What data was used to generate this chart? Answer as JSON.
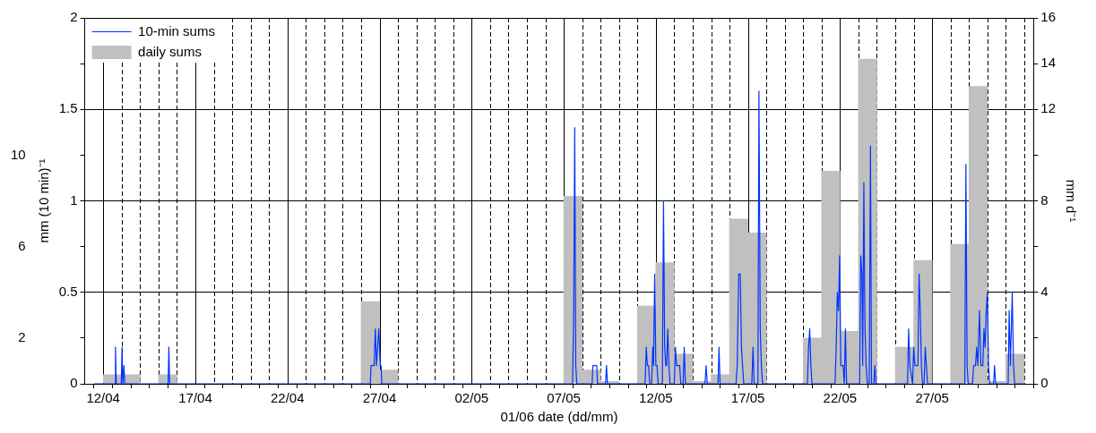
{
  "chart_data": {
    "type": "bar",
    "xlabel": "01/06 date (dd/mm)",
    "ylabel": "mm (10 min)⁻¹",
    "y2label": "mm d⁻¹",
    "xlim": [
      "--04-11T12:00",
      "--06-01T00:00"
    ],
    "xticks": [
      {
        "value": "--04-12",
        "label": "12/04"
      },
      {
        "value": "--04-13",
        "label": null
      },
      {
        "value": "--04-14",
        "label": null
      },
      {
        "value": "--04-15",
        "label": null
      },
      {
        "value": "--04-16",
        "label": null
      },
      {
        "value": "--04-17",
        "label": "17/04"
      },
      {
        "value": "--04-18",
        "label": null
      },
      {
        "value": "--04-19",
        "label": null
      },
      {
        "value": "--04-20",
        "label": null
      },
      {
        "value": "--04-21",
        "label": null
      },
      {
        "value": "--04-22",
        "label": "22/04"
      },
      {
        "value": "--04-23",
        "label": null
      },
      {
        "value": "--04-24",
        "label": null
      },
      {
        "value": "--04-25",
        "label": null
      },
      {
        "value": "--04-26",
        "label": null
      },
      {
        "value": "--04-27",
        "label": "27/04"
      },
      {
        "value": "--04-28",
        "label": null
      },
      {
        "value": "--04-29",
        "label": null
      },
      {
        "value": "--04-30",
        "label": null
      },
      {
        "value": "--05-01",
        "label": null
      },
      {
        "value": "--05-02",
        "label": "02/05"
      },
      {
        "value": "--05-03",
        "label": null
      },
      {
        "value": "--05-04",
        "label": null
      },
      {
        "value": "--05-05",
        "label": null
      },
      {
        "value": "--05-06",
        "label": null
      },
      {
        "value": "--05-07",
        "label": "07/05"
      },
      {
        "value": "--05-08",
        "label": null
      },
      {
        "value": "--05-09",
        "label": null
      },
      {
        "value": "--05-10",
        "label": null
      },
      {
        "value": "--05-11",
        "label": null
      },
      {
        "value": "--05-12",
        "label": "12/05"
      },
      {
        "value": "--05-13",
        "label": null
      },
      {
        "value": "--05-14",
        "label": null
      },
      {
        "value": "--05-15",
        "label": null
      },
      {
        "value": "--05-16",
        "label": null
      },
      {
        "value": "--05-17",
        "label": "17/05"
      },
      {
        "value": "--05-18",
        "label": null
      },
      {
        "value": "--05-19",
        "label": null
      },
      {
        "value": "--05-20",
        "label": null
      },
      {
        "value": "--05-21",
        "label": null
      },
      {
        "value": "--05-22",
        "label": "22/05"
      },
      {
        "value": "--05-23",
        "label": null
      },
      {
        "value": "--05-24",
        "label": null
      },
      {
        "value": "--05-25",
        "label": null
      },
      {
        "value": "--05-26",
        "label": null
      },
      {
        "value": "--05-27",
        "label": "27/05"
      },
      {
        "value": "--05-28",
        "label": null
      },
      {
        "value": "--05-29",
        "label": null
      },
      {
        "value": "--05-30",
        "label": null
      },
      {
        "value": "--05-31",
        "label": null
      },
      {
        "value": "--06-01",
        "label": null
      }
    ],
    "ylim": [
      0,
      2
    ],
    "yticks": [
      0,
      {
        "value": 0.25,
        "label": null
      },
      0.5,
      {
        "value": 0.75,
        "label": null
      },
      1,
      {
        "value": 1.25,
        "label": null
      },
      1.5,
      {
        "value": 1.75,
        "label": null
      },
      2
    ],
    "y2lim": [
      0,
      16
    ],
    "y2ticks": [
      0,
      {
        "value": 2,
        "label": null
      },
      4,
      {
        "value": 6,
        "label": null
      },
      8,
      {
        "value": 10,
        "label": null
      },
      12,
      14,
      16
    ],
    "y3lim": [
      0,
      16
    ],
    "y3ticks": [
      2,
      6,
      10
    ],
    "grid": true,
    "legend": "top left",
    "series": [
      {
        "name": "10-min sums",
        "type": "line",
        "axis": "y",
        "color": "#0033ff",
        "x": [
          "--04-11T12:00",
          "--04-12T15:00",
          "--04-12T16:00",
          "--04-12T17:00",
          "--04-12T23:30",
          "--04-13T00:30",
          "--04-13T01:30",
          "--04-13T03:00",
          "--04-13T04:00",
          "--04-15T12:30",
          "--04-15T13:30",
          "--04-15T14:30",
          "--04-26T12:00",
          "--04-26T13:00",
          "--04-26T17:00",
          "--04-26T18:30",
          "--04-26T20:00",
          "--04-26T21:30",
          "--04-26T23:00",
          "--04-27T01:00",
          "--04-27T02:00",
          "--04-27T03:00",
          "--05-07T11:30",
          "--05-07T13:00",
          "--05-07T14:20",
          "--05-07T15:40",
          "--05-07T17:00",
          "--05-08T13:00",
          "--05-08T14:00",
          "--05-08T19:00",
          "--05-08T20:00",
          "--05-09T06:30",
          "--05-09T07:40",
          "--05-09T09:00",
          "--05-11T10:00",
          "--05-11T11:30",
          "--05-11T13:00",
          "--05-11T14:30",
          "--05-11T16:00",
          "--05-11T18:30",
          "--05-11T20:00",
          "--05-11T21:00",
          "--05-11T22:30",
          "--05-12T00:00",
          "--05-12T01:30",
          "--05-12T03:00",
          "--05-12T08:30",
          "--05-12T10:00",
          "--05-12T11:30",
          "--05-12T13:00",
          "--05-12T14:00",
          "--05-12T15:30",
          "--05-12T17:00",
          "--05-12T18:30",
          "--05-13T00:00",
          "--05-13T01:30",
          "--05-13T03:00",
          "--05-13T07:00",
          "--05-13T08:30",
          "--05-13T11:30",
          "--05-13T13:00",
          "--05-13T14:30",
          "--05-14T16:00",
          "--05-14T17:30",
          "--05-14T19:00",
          "--05-15T09:00",
          "--05-15T10:20",
          "--05-15T11:40",
          "--05-16T08:30",
          "--05-16T10:00",
          "--05-16T12:00",
          "--05-16T14:00",
          "--05-16T15:30",
          "--05-16T17:00",
          "--05-16T18:30",
          "--05-17T05:00",
          "--05-17T06:40",
          "--05-17T08:00",
          "--05-17T13:00",
          "--05-17T14:20",
          "--05-17T16:00",
          "--05-17T17:30",
          "--05-17T19:00",
          "--05-20T05:30",
          "--05-20T07:00",
          "--05-20T08:30",
          "--05-20T10:00",
          "--05-20T11:30",
          "--05-21T17:30",
          "--05-21T19:00",
          "--05-21T20:30",
          "--05-21T22:00",
          "--05-21T23:30",
          "--05-22T01:00",
          "--05-22T04:00",
          "--05-22T05:30",
          "--05-22T07:00",
          "--05-22T08:30",
          "--05-23T01:30",
          "--05-23T03:00",
          "--05-23T04:30",
          "--05-23T05:30",
          "--05-23T07:00",
          "--05-23T08:30",
          "--05-23T10:00",
          "--05-23T11:30",
          "--05-23T14:00",
          "--05-23T15:40",
          "--05-23T17:00",
          "--05-23T20:00",
          "--05-23T21:20",
          "--05-23T22:40",
          "--05-25T16:00",
          "--05-25T17:20",
          "--05-25T19:00",
          "--05-25T22:30",
          "--05-26T00:00",
          "--05-26T01:30",
          "--05-26T05:30",
          "--05-26T07:00",
          "--05-26T08:30",
          "--05-26T10:00",
          "--05-26T11:30",
          "--05-26T13:30",
          "--05-26T15:00",
          "--05-26T16:30",
          "--05-26T18:00",
          "--05-28T18:30",
          "--05-28T20:00",
          "--05-28T21:30",
          "--05-28T23:00",
          "--05-29T04:30",
          "--05-29T06:00",
          "--05-29T08:30",
          "--05-29T10:00",
          "--05-29T11:30",
          "--05-29T13:40",
          "--05-29T15:30",
          "--05-29T18:00",
          "--05-29T19:30",
          "--05-29T21:00",
          "--05-29T22:30",
          "--05-30T00:00",
          "--05-30T01:30",
          "--05-30T03:00",
          "--05-30T08:00",
          "--05-30T09:20",
          "--05-30T10:40",
          "--05-31T03:00",
          "--05-31T04:20",
          "--05-31T06:00",
          "--05-31T08:20",
          "--05-31T10:00",
          "--05-31T11:30",
          "--06-01T00:00"
        ],
        "values": [
          0,
          0,
          0.2,
          0,
          0,
          0.2,
          0,
          0.1,
          0,
          0,
          0.2,
          0,
          0,
          0.1,
          0.1,
          0.3,
          0.1,
          0.2,
          0.3,
          0.1,
          0.1,
          0,
          0,
          0.4,
          1.4,
          0.1,
          0,
          0,
          0.1,
          0.1,
          0,
          0,
          0.1,
          0,
          0,
          0.2,
          0.1,
          0.1,
          0,
          0,
          0.2,
          0.1,
          0.6,
          0.1,
          0.1,
          0,
          0,
          1.0,
          0.2,
          0.1,
          0.1,
          0.3,
          0.1,
          0,
          0,
          0.2,
          0.1,
          0.1,
          0,
          0,
          0.2,
          0,
          0,
          0.1,
          0,
          0,
          0.2,
          0,
          0,
          0.1,
          0.6,
          0.6,
          0.2,
          0.1,
          0,
          0,
          0.2,
          0,
          0,
          1.6,
          0.3,
          0.1,
          0,
          0,
          0.2,
          0.3,
          0.1,
          0,
          0,
          0.2,
          0.5,
          0.4,
          0.7,
          0.1,
          0.1,
          0,
          0.3,
          0,
          0,
          0.7,
          0.6,
          0.1,
          1.1,
          0.3,
          0.1,
          0,
          0,
          1.3,
          0,
          0,
          0.1,
          0,
          0,
          0.3,
          0.1,
          0,
          0.2,
          0.1,
          0.1,
          0.6,
          0.4,
          0.1,
          0,
          0,
          0.2,
          0.1,
          0,
          0,
          1.2,
          0.1,
          0,
          0,
          0.1,
          0.1,
          0.2,
          0.1,
          0.4,
          0.1,
          0.1,
          0.3,
          0.2,
          0.4,
          0.5,
          0.1,
          0,
          0,
          0.1,
          0,
          0,
          0.4,
          0.1,
          0.5,
          0.1,
          0,
          0
        ]
      },
      {
        "name": "daily sums",
        "axis": "y2",
        "color": "#c0c0c0",
        "x": [
          "--04-12T12:00",
          "--04-13T12:00",
          "--04-15T12:00",
          "--04-26T12:00",
          "--04-27T12:00",
          "--05-07T12:00",
          "--05-08T12:00",
          "--05-09T12:00",
          "--05-11T12:00",
          "--05-12T12:00",
          "--05-13T12:00",
          "--05-14T12:00",
          "--05-15T12:00",
          "--05-16T12:00",
          "--05-17T12:00",
          "--05-20T12:00",
          "--05-21T12:00",
          "--05-22T12:00",
          "--05-23T12:00",
          "--05-25T12:00",
          "--05-26T12:00",
          "--05-28T12:00",
          "--05-29T12:00",
          "--05-30T12:00",
          "--05-31T12:00"
        ],
        "values": [
          0.4,
          0.4,
          0.4,
          3.6,
          0.6,
          8.2,
          0.6,
          0.1,
          3.4,
          5.3,
          1.3,
          0.1,
          0.4,
          7.2,
          6.6,
          2.0,
          9.3,
          2.3,
          14.2,
          1.6,
          5.4,
          6.1,
          13.0,
          0.1,
          1.3
        ]
      }
    ]
  }
}
